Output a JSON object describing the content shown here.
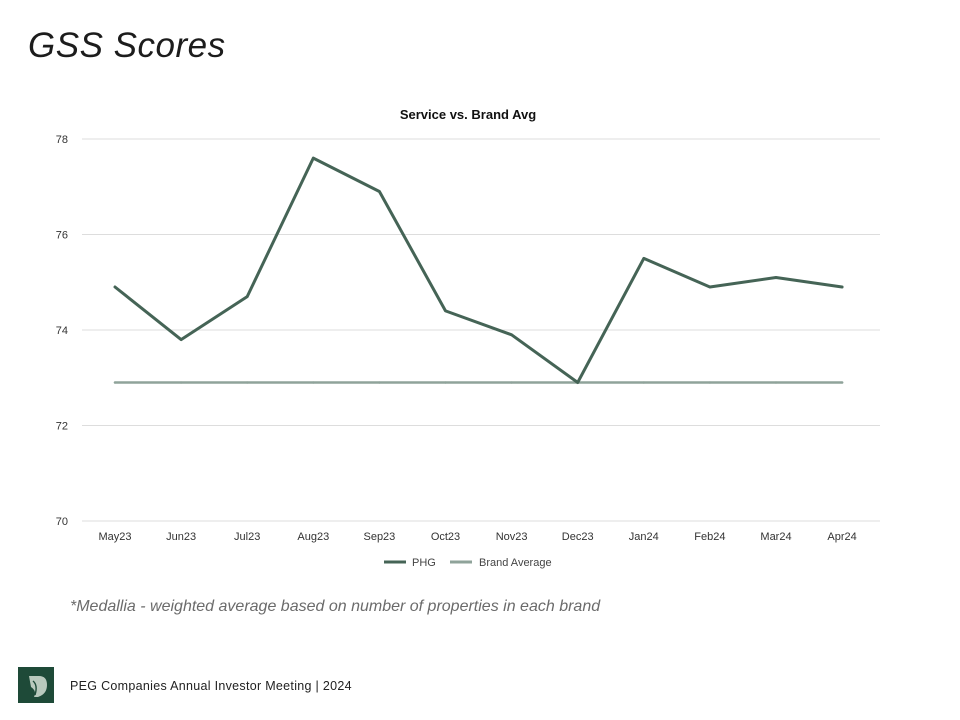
{
  "page": {
    "title": "GSS Scores",
    "footnote": "*Medallia - weighted average based on number of properties in each brand",
    "footer": "PEG Companies Annual Investor Meeting | 2024"
  },
  "colors": {
    "phg": "#456456",
    "brand_average": "#8fa39a",
    "grid": "#dddddd",
    "logo_bg": "#1e4a38"
  },
  "chart_data": {
    "type": "line",
    "title": "Service vs. Brand Avg",
    "xlabel": "",
    "ylabel": "",
    "categories": [
      "May23",
      "Jun23",
      "Jul23",
      "Aug23",
      "Sep23",
      "Oct23",
      "Nov23",
      "Dec23",
      "Jan24",
      "Feb24",
      "Mar24",
      "Apr24"
    ],
    "ylim": [
      70,
      78
    ],
    "yticks": [
      70,
      72,
      74,
      76,
      78
    ],
    "grid": true,
    "legend_position": "bottom",
    "series": [
      {
        "name": "PHG",
        "values": [
          74.9,
          73.8,
          74.7,
          77.6,
          76.9,
          74.4,
          73.9,
          72.9,
          75.5,
          74.9,
          75.1,
          74.9
        ]
      },
      {
        "name": "Brand Average",
        "values": [
          72.9,
          72.9,
          72.9,
          72.9,
          72.9,
          72.9,
          72.9,
          72.9,
          72.9,
          72.9,
          72.9,
          72.9
        ]
      }
    ]
  }
}
